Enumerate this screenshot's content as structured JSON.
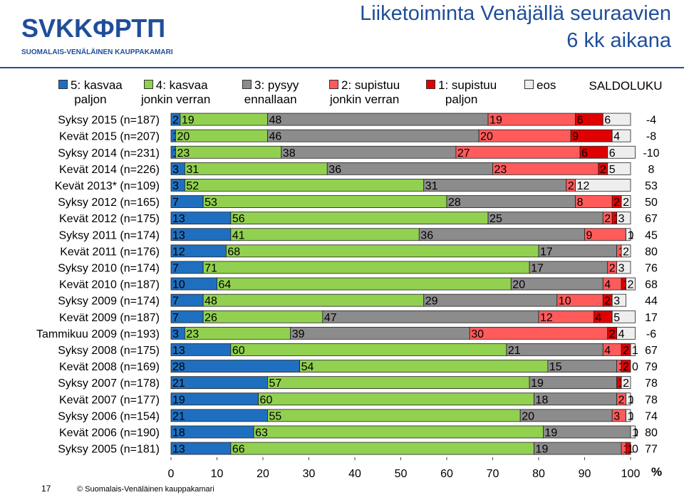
{
  "header": {
    "logo": "SVKKФРТП",
    "logo_subtitle": "SUOMALAIS-VENÄLÄINEN KAUPPAKAMARI",
    "page_number": "17",
    "copyright": "© Suomalais-Venäläinen kauppakamari"
  },
  "chart_data": {
    "type": "bar",
    "orientation": "horizontal",
    "stacked": true,
    "title": "Liiketoiminta Venäjällä seuraavien\n6 kk aikana",
    "categories": [
      "Syksy 2015 (n=187)",
      "Kevät 2015 (n=207)",
      "Syksy 2014 (n=231)",
      "Kevät 2014 (n=226)",
      "Kevät 2013* (n=109)",
      "Syksy 2012 (n=165)",
      "Kevät 2012 (n=175)",
      "Syksy 2011 (n=174)",
      "Kevät 2011 (n=176)",
      "Syksy 2010 (n=174)",
      "Kevät 2010 (n=187)",
      "Syksy 2009 (n=174)",
      "Kevät 2009 (n=187)",
      "Tammikuu 2009 (n=193)",
      "Syksy 2008 (n=175)",
      "Kevät 2008 (n=169)",
      "Syksy 2007 (n=178)",
      "Kevät 2007 (n=177)",
      "Syksy 2006 (n=154)",
      "Kevät 2006 (n=190)",
      "Syksy 2005 (n=181)"
    ],
    "series": [
      {
        "name": "5: kasvaa\npaljon",
        "color": "#1f6fc0",
        "values": [
          2,
          1,
          1,
          3,
          3,
          7,
          13,
          13,
          12,
          7,
          10,
          7,
          7,
          3,
          13,
          28,
          21,
          19,
          21,
          18,
          13
        ]
      },
      {
        "name": "4: kasvaa\njonkin verran",
        "color": "#92d050",
        "values": [
          19,
          20,
          23,
          31,
          52,
          53,
          56,
          41,
          68,
          71,
          64,
          48,
          26,
          23,
          60,
          54,
          57,
          60,
          55,
          63,
          66
        ]
      },
      {
        "name": "3: pysyy\nennallaan",
        "color": "#8c8c8c",
        "values": [
          48,
          46,
          38,
          36,
          31,
          28,
          25,
          36,
          17,
          17,
          20,
          29,
          47,
          39,
          21,
          15,
          19,
          18,
          20,
          19,
          19
        ]
      },
      {
        "name": "2: supistuu\njonkin verran",
        "color": "#ff5b5b",
        "values": [
          19,
          20,
          27,
          23,
          2,
          8,
          2,
          9,
          1,
          2,
          4,
          10,
          12,
          30,
          4,
          1,
          0,
          2,
          3,
          0,
          1
        ]
      },
      {
        "name": "1: supistuu\npaljon",
        "color": "#e00000",
        "values": [
          6,
          9,
          6,
          2,
          0,
          2,
          1,
          0,
          0,
          0,
          1,
          2,
          4,
          2,
          2,
          2,
          1,
          0,
          0,
          0,
          1
        ]
      },
      {
        "name": "eos",
        "color": "#eeeeee",
        "values": [
          6,
          4,
          6,
          5,
          12,
          2,
          3,
          1,
          2,
          3,
          2,
          3,
          5,
          4,
          1,
          0,
          2,
          1,
          1,
          1,
          0
        ]
      }
    ],
    "saldoluku": {
      "name": "SALDOLUKU",
      "values": [
        -4,
        -8,
        -10,
        8,
        53,
        50,
        67,
        45,
        80,
        76,
        68,
        44,
        17,
        -6,
        67,
        79,
        78,
        78,
        74,
        80,
        77
      ]
    },
    "xlim": [
      0,
      100
    ],
    "xticks": [
      0,
      10,
      20,
      30,
      40,
      50,
      60,
      70,
      80,
      90,
      100
    ],
    "x_unit": "%"
  }
}
